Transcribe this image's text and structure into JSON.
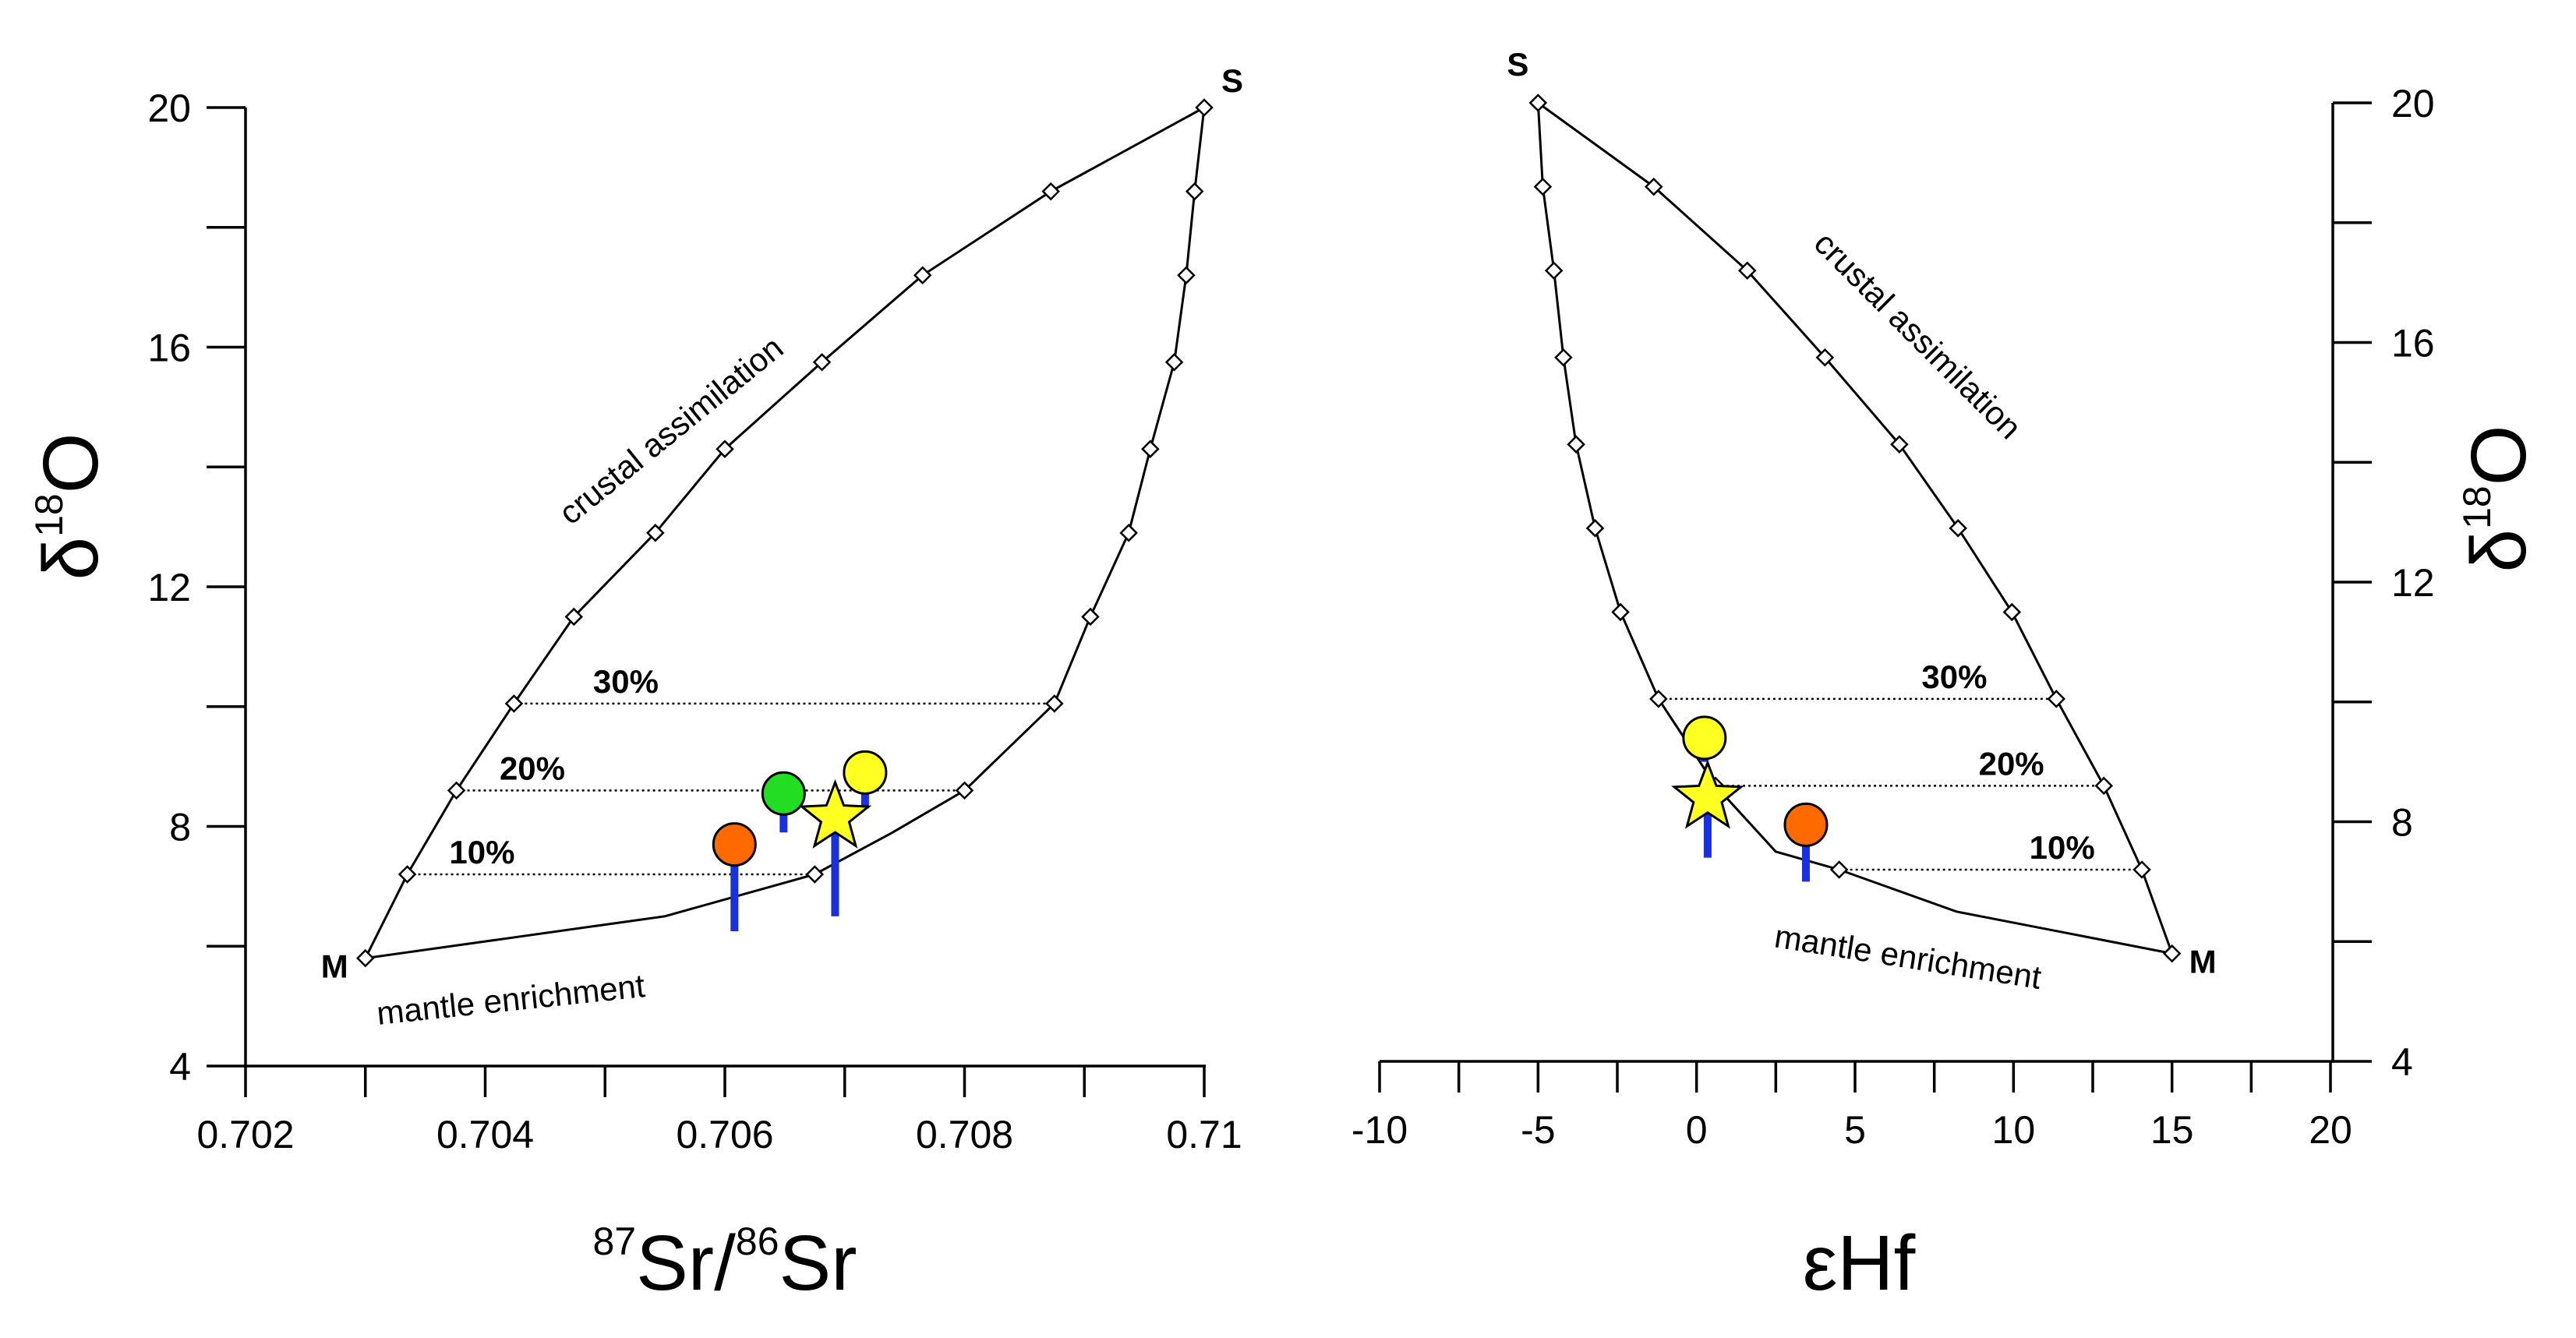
{
  "chart_data": [
    {
      "type": "scatter",
      "name": "left",
      "xlabel_parts": [
        "87",
        "Sr/",
        "86",
        "Sr"
      ],
      "ylabel_parts": [
        "δ",
        "18",
        "O"
      ],
      "xlim": [
        0.702,
        0.71
      ],
      "ylim": [
        4,
        20
      ],
      "xticks": [
        0.702,
        0.704,
        0.706,
        0.708,
        0.71
      ],
      "xtick_labels": [
        "0.702",
        "0.704",
        "0.706",
        "0.708",
        "0.71"
      ],
      "yticks": [
        4,
        8,
        12,
        16,
        20
      ],
      "ytick_labels": [
        "4",
        "8",
        "12",
        "16",
        "20"
      ],
      "y_axis_side": "left",
      "endmembers": [
        {
          "label": "M",
          "x": 0.703,
          "y": 5.8
        },
        {
          "label": "S",
          "x": 0.71,
          "y": 20.0
        }
      ],
      "upper_curve": {
        "label": "crustal assimilation",
        "points": [
          [
            0.703,
            5.8
          ],
          [
            0.70335,
            7.2
          ],
          [
            0.70376,
            8.6
          ],
          [
            0.70424,
            10.05
          ],
          [
            0.70474,
            11.5
          ],
          [
            0.70542,
            12.9
          ],
          [
            0.706,
            14.3
          ],
          [
            0.70681,
            15.75
          ],
          [
            0.70765,
            17.2
          ],
          [
            0.70872,
            18.6
          ],
          [
            0.71,
            20.0
          ]
        ]
      },
      "lower_curve": {
        "label": "mantle enrichment",
        "points": [
          [
            0.703,
            5.8
          ],
          [
            0.7055,
            6.5
          ],
          [
            0.70675,
            7.2
          ],
          [
            0.7074,
            7.9
          ],
          [
            0.708,
            8.6
          ],
          [
            0.70875,
            10.05
          ],
          [
            0.70905,
            11.5
          ],
          [
            0.70937,
            12.9
          ],
          [
            0.70955,
            14.3
          ],
          [
            0.70975,
            15.75
          ],
          [
            0.70985,
            17.2
          ],
          [
            0.70992,
            18.6
          ],
          [
            0.71,
            20.0
          ]
        ]
      },
      "curve_diamonds": [
        [
          0.70335,
          7.2
        ],
        [
          0.70376,
          8.6
        ],
        [
          0.70424,
          10.05
        ],
        [
          0.70474,
          11.5
        ],
        [
          0.70542,
          12.9
        ],
        [
          0.706,
          14.3
        ],
        [
          0.70681,
          15.75
        ],
        [
          0.70765,
          17.2
        ],
        [
          0.70872,
          18.6
        ],
        [
          0.70675,
          7.2
        ],
        [
          0.708,
          8.6
        ],
        [
          0.70875,
          10.05
        ],
        [
          0.70905,
          11.5
        ],
        [
          0.70937,
          12.9
        ],
        [
          0.70955,
          14.3
        ],
        [
          0.70975,
          15.75
        ],
        [
          0.70985,
          17.2
        ],
        [
          0.70992,
          18.6
        ]
      ],
      "assimilation_lines": [
        {
          "label": "10%",
          "y": 7.2,
          "x_from": 0.70335,
          "x_to": 0.70675,
          "label_x": 0.7037
        },
        {
          "label": "20%",
          "y": 8.6,
          "x_from": 0.70376,
          "x_to": 0.708,
          "label_x": 0.70412
        },
        {
          "label": "30%",
          "y": 10.05,
          "x_from": 0.70424,
          "x_to": 0.70875,
          "label_x": 0.7049
        }
      ],
      "samples": [
        {
          "marker": "circle",
          "color": "#ff6a00",
          "x": 0.70608,
          "y": 7.7,
          "err_low": 6.25
        },
        {
          "marker": "circle",
          "color": "#22dd22",
          "x": 0.70649,
          "y": 8.55,
          "err_low": 7.9
        },
        {
          "marker": "circle",
          "color": "#ffff22",
          "x": 0.70717,
          "y": 8.9,
          "err_low": 8.3
        },
        {
          "marker": "star",
          "color": "#ffff22",
          "x": 0.70692,
          "y": 8.15,
          "err_low": 6.5
        }
      ]
    },
    {
      "type": "scatter",
      "name": "right",
      "xlabel_parts": [
        "εHf"
      ],
      "ylabel_parts": [
        "δ",
        "18",
        "O"
      ],
      "xlim": [
        -10,
        20
      ],
      "ylim": [
        4,
        20
      ],
      "xticks": [
        -10,
        -5,
        0,
        5,
        10,
        15,
        20
      ],
      "xtick_labels": [
        "-10",
        "-5",
        "0",
        "5",
        "10",
        "15",
        "20"
      ],
      "yticks": [
        4,
        8,
        12,
        16,
        20
      ],
      "ytick_labels": [
        "4",
        "8",
        "12",
        "16",
        "20"
      ],
      "y_axis_side": "right",
      "endmembers": [
        {
          "label": "M",
          "x": 15.0,
          "y": 5.8
        },
        {
          "label": "S",
          "x": -5.0,
          "y": 20.0
        }
      ],
      "upper_curve": {
        "label": "crustal assimilation",
        "points": [
          [
            -5.0,
            20.0
          ],
          [
            -1.35,
            18.6
          ],
          [
            1.6,
            17.2
          ],
          [
            4.05,
            15.75
          ],
          [
            6.4,
            14.3
          ],
          [
            8.25,
            12.9
          ],
          [
            9.95,
            11.5
          ],
          [
            11.35,
            10.05
          ],
          [
            12.85,
            8.6
          ],
          [
            14.05,
            7.2
          ],
          [
            15.0,
            5.8
          ]
        ]
      },
      "lower_curve": {
        "label": "mantle enrichment",
        "points": [
          [
            -5.0,
            20.0
          ],
          [
            -4.85,
            18.6
          ],
          [
            -4.5,
            17.2
          ],
          [
            -4.2,
            15.75
          ],
          [
            -3.8,
            14.3
          ],
          [
            -3.2,
            12.9
          ],
          [
            -2.4,
            11.5
          ],
          [
            -1.2,
            10.05
          ],
          [
            0.6,
            8.6
          ],
          [
            2.5,
            7.5
          ],
          [
            4.5,
            7.2
          ],
          [
            8.2,
            6.5
          ],
          [
            15.0,
            5.8
          ]
        ]
      },
      "curve_diamonds": [
        [
          -1.35,
          18.6
        ],
        [
          1.6,
          17.2
        ],
        [
          4.05,
          15.75
        ],
        [
          6.4,
          14.3
        ],
        [
          8.25,
          12.9
        ],
        [
          9.95,
          11.5
        ],
        [
          11.35,
          10.05
        ],
        [
          12.85,
          8.6
        ],
        [
          14.05,
          7.2
        ],
        [
          -4.85,
          18.6
        ],
        [
          -4.5,
          17.2
        ],
        [
          -4.2,
          15.75
        ],
        [
          -3.8,
          14.3
        ],
        [
          -3.2,
          12.9
        ],
        [
          -2.4,
          11.5
        ],
        [
          -1.2,
          10.05
        ],
        [
          0.6,
          8.6
        ],
        [
          4.5,
          7.2
        ]
      ],
      "assimilation_lines": [
        {
          "label": "10%",
          "y": 7.2,
          "x_from": 4.5,
          "x_to": 14.05,
          "label_x": 10.5
        },
        {
          "label": "20%",
          "y": 8.6,
          "x_from": 0.6,
          "x_to": 12.85,
          "label_x": 8.9
        },
        {
          "label": "30%",
          "y": 10.05,
          "x_from": -1.2,
          "x_to": 11.35,
          "label_x": 7.1
        }
      ],
      "samples": [
        {
          "marker": "circle",
          "color": "#ffff22",
          "x": 0.25,
          "y": 9.4,
          "err_low": 9.0
        },
        {
          "marker": "circle",
          "color": "#ff6a00",
          "x": 3.45,
          "y": 7.95,
          "err_low": 7.0
        },
        {
          "marker": "star",
          "color": "#ffff22",
          "x": 0.35,
          "y": 8.4,
          "err_low": 7.4
        }
      ]
    }
  ]
}
